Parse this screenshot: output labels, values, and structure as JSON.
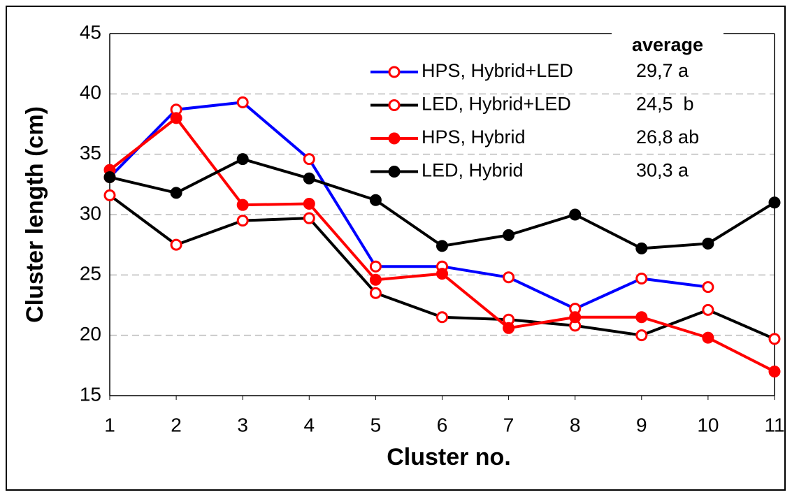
{
  "chart_data": {
    "type": "line",
    "x_label": "Cluster no.",
    "y_label": "Cluster length (cm)",
    "x": [
      1,
      2,
      3,
      4,
      5,
      6,
      7,
      8,
      9,
      10,
      11
    ],
    "xlim": [
      1,
      11
    ],
    "xticks": [
      1,
      2,
      3,
      4,
      5,
      6,
      7,
      8,
      9,
      10,
      11
    ],
    "ylim": [
      15,
      45
    ],
    "yticks": [
      15,
      20,
      25,
      30,
      35,
      40,
      45
    ],
    "grid": true,
    "average_header": "average",
    "series": [
      {
        "name": "HPS, Hybrid+LED",
        "color": "#0000ff",
        "marker_color": "#ff0000",
        "marker_filled": false,
        "average": "29,7 a",
        "values": [
          33.1,
          38.7,
          39.3,
          34.6,
          25.7,
          25.7,
          24.8,
          22.2,
          24.7,
          24.0,
          null
        ]
      },
      {
        "name": "LED, Hybrid+LED",
        "color": "#000000",
        "marker_color": "#ff0000",
        "marker_filled": false,
        "average": "24,5  b",
        "values": [
          31.6,
          27.5,
          29.5,
          29.7,
          23.5,
          21.5,
          21.3,
          20.8,
          20.0,
          22.1,
          19.7
        ]
      },
      {
        "name": "HPS, Hybrid",
        "color": "#ff0000",
        "marker_color": "#ff0000",
        "marker_filled": true,
        "average": "26,8 ab",
        "values": [
          33.7,
          38.0,
          30.8,
          30.9,
          24.6,
          25.1,
          20.6,
          21.5,
          21.5,
          19.8,
          17.0
        ]
      },
      {
        "name": "LED, Hybrid",
        "color": "#000000",
        "marker_color": "#000000",
        "marker_filled": true,
        "average": "30,3 a",
        "values": [
          33.1,
          31.8,
          34.6,
          33.0,
          31.2,
          27.4,
          28.3,
          30.0,
          27.2,
          27.6,
          31.0
        ]
      }
    ]
  }
}
